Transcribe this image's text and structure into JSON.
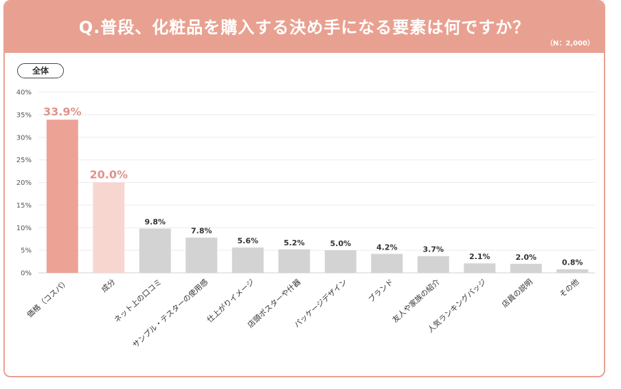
{
  "header": {
    "question": "Q.普段、化粧品を購入する決め手になる要素は何ですか？",
    "sample_size": "（N：2,000）"
  },
  "segment_tab": "全体",
  "colors": {
    "header_bg": "#e8a191",
    "bar_top": "#eca396",
    "bar_second": "#f7d6d0",
    "bar_other": "#d3d3d3",
    "highlight_label": "#e0938a",
    "gridline": "#ececec"
  },
  "chart_data": {
    "type": "bar",
    "title": "Q.普段、化粧品を購入する決め手になる要素は何ですか？",
    "xlabel": "",
    "ylabel": "",
    "ylim": [
      0,
      40
    ],
    "yticks": [
      0,
      5,
      10,
      15,
      20,
      25,
      30,
      35,
      40
    ],
    "ytick_labels": [
      "0%",
      "5%",
      "10%",
      "15%",
      "20%",
      "25%",
      "30%",
      "35%",
      "40%"
    ],
    "categories": [
      "価格（コスパ）",
      "成分",
      "ネット上の口コミ",
      "サンプル・テスターの使用感",
      "仕上がりイメージ",
      "店頭ポスターや什器",
      "パッケージデザイン",
      "ブランド",
      "友人や家族の紹介",
      "人気ランキングバッジ",
      "店員の説明",
      "その他"
    ],
    "values": [
      33.9,
      20.0,
      9.8,
      7.8,
      5.6,
      5.2,
      5.0,
      4.2,
      3.7,
      2.1,
      2.0,
      0.8
    ],
    "value_labels": [
      "33.9%",
      "20.0%",
      "9.8%",
      "7.8%",
      "5.6%",
      "5.2%",
      "5.0%",
      "4.2%",
      "3.7%",
      "2.1%",
      "2.0%",
      "0.8%"
    ],
    "grid": true
  }
}
